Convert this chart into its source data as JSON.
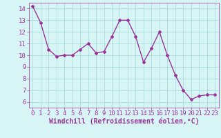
{
  "x": [
    0,
    1,
    2,
    3,
    4,
    5,
    6,
    7,
    8,
    9,
    10,
    11,
    12,
    13,
    14,
    15,
    16,
    17,
    18,
    19,
    20,
    21,
    22,
    23
  ],
  "y": [
    14.2,
    12.8,
    10.5,
    9.9,
    10.0,
    10.0,
    10.5,
    11.0,
    10.2,
    10.3,
    11.6,
    13.0,
    13.0,
    11.6,
    9.4,
    10.6,
    12.0,
    10.0,
    8.3,
    7.0,
    6.2,
    6.5,
    6.6,
    6.6
  ],
  "line_color": "#993399",
  "marker": "D",
  "marker_size": 2,
  "linewidth": 1.0,
  "bg_color": "#d8f5f5",
  "grid_color": "#aadddd",
  "xlabel": "Windchill (Refroidissement éolien,°C)",
  "xlabel_color": "#993399",
  "xlabel_fontsize": 7,
  "tick_color": "#993399",
  "tick_fontsize": 6.5,
  "ylim": [
    5.5,
    14.5
  ],
  "xlim": [
    -0.5,
    23.5
  ],
  "yticks": [
    6,
    7,
    8,
    9,
    10,
    11,
    12,
    13,
    14
  ],
  "xticks": [
    0,
    1,
    2,
    3,
    4,
    5,
    6,
    7,
    8,
    9,
    10,
    11,
    12,
    13,
    14,
    15,
    16,
    17,
    18,
    19,
    20,
    21,
    22,
    23
  ]
}
